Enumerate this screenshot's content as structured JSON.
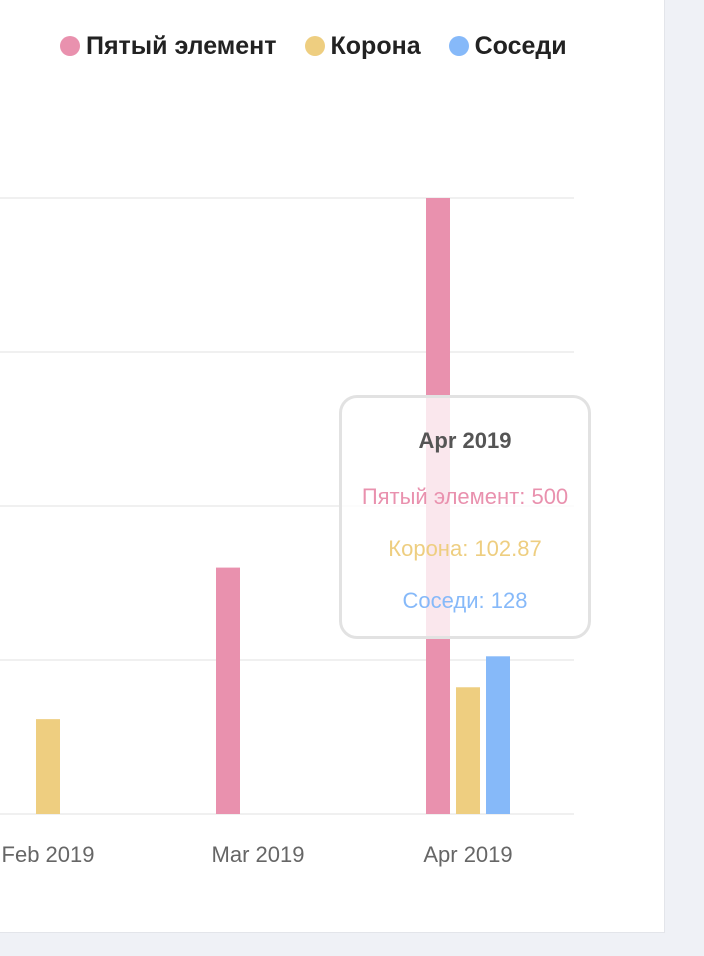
{
  "colors": {
    "pink": "#e991ae",
    "yellow": "#eece80",
    "blue": "#86b9f9",
    "grid": "#ececec",
    "tick": "#666666"
  },
  "legend": [
    {
      "label": "Пятый элемент",
      "color": "#e991ae"
    },
    {
      "label": "Корона",
      "color": "#eece80"
    },
    {
      "label": "Соседи",
      "color": "#86b9f9"
    }
  ],
  "chart_data": {
    "type": "bar",
    "categories": [
      "Feb 2019",
      "Mar 2019",
      "Apr 2019"
    ],
    "series": [
      {
        "name": "Пятый элемент",
        "color": "#e991ae",
        "values": [
          0,
          200,
          500
        ]
      },
      {
        "name": "Корона",
        "color": "#eece80",
        "values": [
          77,
          0,
          102.87
        ]
      },
      {
        "name": "Соседи",
        "color": "#86b9f9",
        "values": [
          0,
          0,
          128
        ]
      }
    ],
    "ylim": [
      0,
      500
    ],
    "yticks": [
      0,
      125,
      250,
      375,
      500
    ],
    "grid": true,
    "legend_position": "top-right"
  },
  "tooltip": {
    "title": "Apr 2019",
    "rows": [
      {
        "text": "Пятый элемент: 500",
        "color": "#e991ae"
      },
      {
        "text": "Корона: 102.87",
        "color": "#eece80"
      },
      {
        "text": "Соседи: 128",
        "color": "#86b9f9"
      }
    ]
  }
}
